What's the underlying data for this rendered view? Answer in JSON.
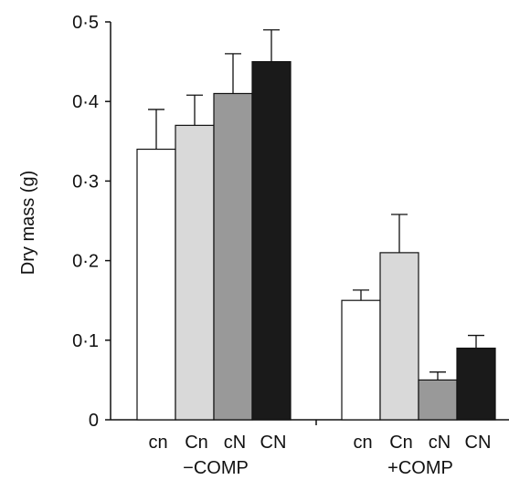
{
  "chart_data": {
    "type": "bar",
    "title": "",
    "xlabel": "",
    "ylabel": "Dry mass (g)",
    "ylim": [
      0,
      0.5
    ],
    "yticks": [
      0,
      0.1,
      0.2,
      0.3,
      0.4,
      0.5
    ],
    "ytick_labels": [
      "0",
      "0·1",
      "0·2",
      "0·3",
      "0·4",
      "0·5"
    ],
    "grid": false,
    "categories": [
      "cn",
      "Cn",
      "cN",
      "CN"
    ],
    "groups": [
      {
        "label": "−COMP",
        "bars": [
          {
            "category": "cn",
            "value": 0.34,
            "error": 0.05
          },
          {
            "category": "Cn",
            "value": 0.37,
            "error": 0.038
          },
          {
            "category": "cN",
            "value": 0.41,
            "error": 0.05
          },
          {
            "category": "CN",
            "value": 0.45,
            "error": 0.04
          }
        ]
      },
      {
        "label": "+COMP",
        "bars": [
          {
            "category": "cn",
            "value": 0.15,
            "error": 0.013
          },
          {
            "category": "Cn",
            "value": 0.21,
            "error": 0.048
          },
          {
            "category": "cN",
            "value": 0.05,
            "error": 0.01
          },
          {
            "category": "CN",
            "value": 0.09,
            "error": 0.016
          }
        ]
      }
    ],
    "colors": [
      "#ffffff",
      "#d9d9d9",
      "#999999",
      "#1a1a1a"
    ]
  }
}
